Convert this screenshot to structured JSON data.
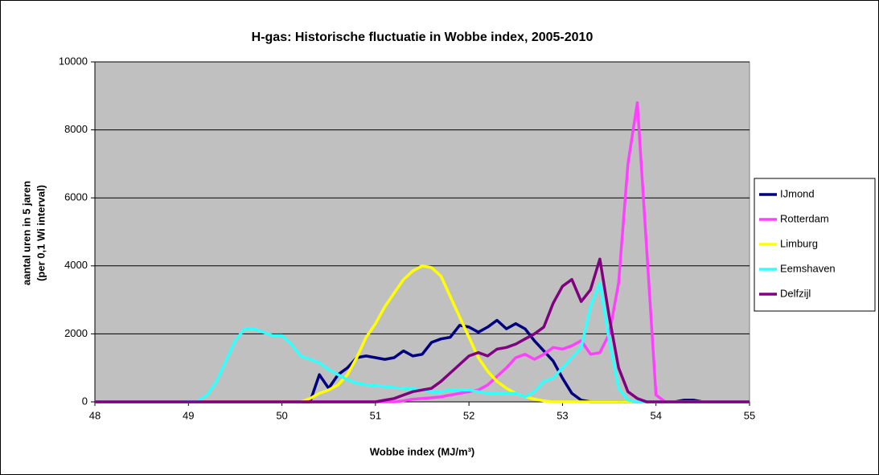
{
  "chart_data": {
    "type": "line",
    "title": "H-gas: Historische fluctuatie in Wobbe index, 2005-2010",
    "xlabel": "Wobbe index (MJ/m³)",
    "ylabel": [
      "aantal uren in 5 jaren",
      "(per 0,1 Wi interval)"
    ],
    "x": [
      48.0,
      48.1,
      48.2,
      48.3,
      48.4,
      48.5,
      48.6,
      48.7,
      48.8,
      48.9,
      49.0,
      49.1,
      49.2,
      49.3,
      49.4,
      49.5,
      49.6,
      49.7,
      49.8,
      49.9,
      50.0,
      50.1,
      50.2,
      50.3,
      50.4,
      50.5,
      50.6,
      50.7,
      50.8,
      50.9,
      51.0,
      51.1,
      51.2,
      51.3,
      51.4,
      51.5,
      51.6,
      51.7,
      51.8,
      51.9,
      52.0,
      52.1,
      52.2,
      52.3,
      52.4,
      52.5,
      52.6,
      52.7,
      52.8,
      52.9,
      53.0,
      53.1,
      53.2,
      53.3,
      53.4,
      53.5,
      53.6,
      53.7,
      53.8,
      53.9,
      54.0,
      54.1,
      54.2,
      54.3,
      54.4,
      54.5,
      54.6,
      54.7,
      54.8,
      54.9,
      55.0
    ],
    "series": [
      {
        "name": "IJmond",
        "color": "#000080",
        "values": [
          0,
          0,
          0,
          0,
          0,
          0,
          0,
          0,
          0,
          0,
          0,
          0,
          0,
          0,
          0,
          0,
          0,
          0,
          0,
          0,
          0,
          0,
          0,
          0,
          800,
          400,
          800,
          1000,
          1300,
          1350,
          1300,
          1250,
          1300,
          1500,
          1350,
          1400,
          1750,
          1850,
          1900,
          2250,
          2200,
          2050,
          2200,
          2400,
          2150,
          2300,
          2150,
          1800,
          1500,
          1200,
          700,
          250,
          50,
          0,
          0,
          0,
          0,
          0,
          0,
          0,
          0,
          0,
          0,
          50,
          50,
          0,
          0,
          0,
          0,
          0,
          0
        ]
      },
      {
        "name": "Rotterdam",
        "color": "#ff40ff",
        "values": [
          0,
          0,
          0,
          0,
          0,
          0,
          0,
          0,
          0,
          0,
          0,
          0,
          0,
          0,
          0,
          0,
          0,
          0,
          0,
          0,
          0,
          0,
          0,
          0,
          0,
          0,
          0,
          0,
          0,
          0,
          0,
          0,
          0,
          30,
          80,
          100,
          120,
          150,
          200,
          250,
          300,
          350,
          500,
          750,
          1000,
          1300,
          1400,
          1250,
          1400,
          1600,
          1550,
          1650,
          1800,
          1400,
          1450,
          2000,
          3500,
          7000,
          8800,
          4500,
          200,
          0,
          0,
          0,
          0,
          0,
          0,
          0,
          0,
          0,
          0
        ]
      },
      {
        "name": "Limburg",
        "color": "#ffff00",
        "values": [
          0,
          0,
          0,
          0,
          0,
          0,
          0,
          0,
          0,
          0,
          0,
          0,
          0,
          0,
          0,
          0,
          0,
          0,
          0,
          0,
          0,
          0,
          0,
          100,
          250,
          350,
          500,
          800,
          1300,
          1900,
          2300,
          2800,
          3200,
          3600,
          3850,
          4000,
          3950,
          3700,
          3100,
          2500,
          1900,
          1300,
          900,
          600,
          400,
          250,
          150,
          80,
          30,
          0,
          0,
          0,
          0,
          0,
          0,
          0,
          0,
          0,
          0,
          0,
          0,
          0,
          0,
          0,
          0,
          0,
          0,
          0,
          0,
          0,
          0
        ]
      },
      {
        "name": "Eemshaven",
        "color": "#33ffff",
        "values": [
          0,
          0,
          0,
          0,
          0,
          0,
          0,
          0,
          0,
          0,
          30,
          30,
          200,
          600,
          1200,
          1800,
          2150,
          2150,
          2050,
          1950,
          1950,
          1700,
          1350,
          1250,
          1150,
          950,
          800,
          650,
          550,
          500,
          480,
          450,
          420,
          400,
          380,
          350,
          300,
          300,
          350,
          350,
          350,
          300,
          250,
          250,
          250,
          250,
          150,
          300,
          600,
          700,
          1000,
          1300,
          1600,
          2800,
          3500,
          1800,
          400,
          50,
          0,
          0,
          0,
          0,
          0,
          0,
          0,
          0,
          0,
          0,
          0,
          0,
          0
        ]
      },
      {
        "name": "Delfzijl",
        "color": "#800080",
        "values": [
          0,
          0,
          0,
          0,
          0,
          0,
          0,
          0,
          0,
          0,
          0,
          0,
          0,
          0,
          0,
          0,
          0,
          0,
          0,
          0,
          0,
          0,
          0,
          0,
          0,
          0,
          0,
          0,
          0,
          0,
          0,
          50,
          100,
          200,
          300,
          350,
          400,
          600,
          850,
          1100,
          1350,
          1450,
          1350,
          1550,
          1600,
          1700,
          1850,
          2000,
          2200,
          2900,
          3400,
          3600,
          2950,
          3300,
          4200,
          2500,
          1000,
          300,
          100,
          0,
          0,
          0,
          0,
          0,
          0,
          0,
          0,
          0,
          0,
          0,
          0
        ]
      }
    ],
    "xlim": [
      48,
      55
    ],
    "xticks": [
      48,
      49,
      50,
      51,
      52,
      53,
      54,
      55
    ],
    "ylim": [
      0,
      10000
    ],
    "yticks": [
      0,
      2000,
      4000,
      6000,
      8000,
      10000
    ],
    "grid": true,
    "legend": "right"
  }
}
